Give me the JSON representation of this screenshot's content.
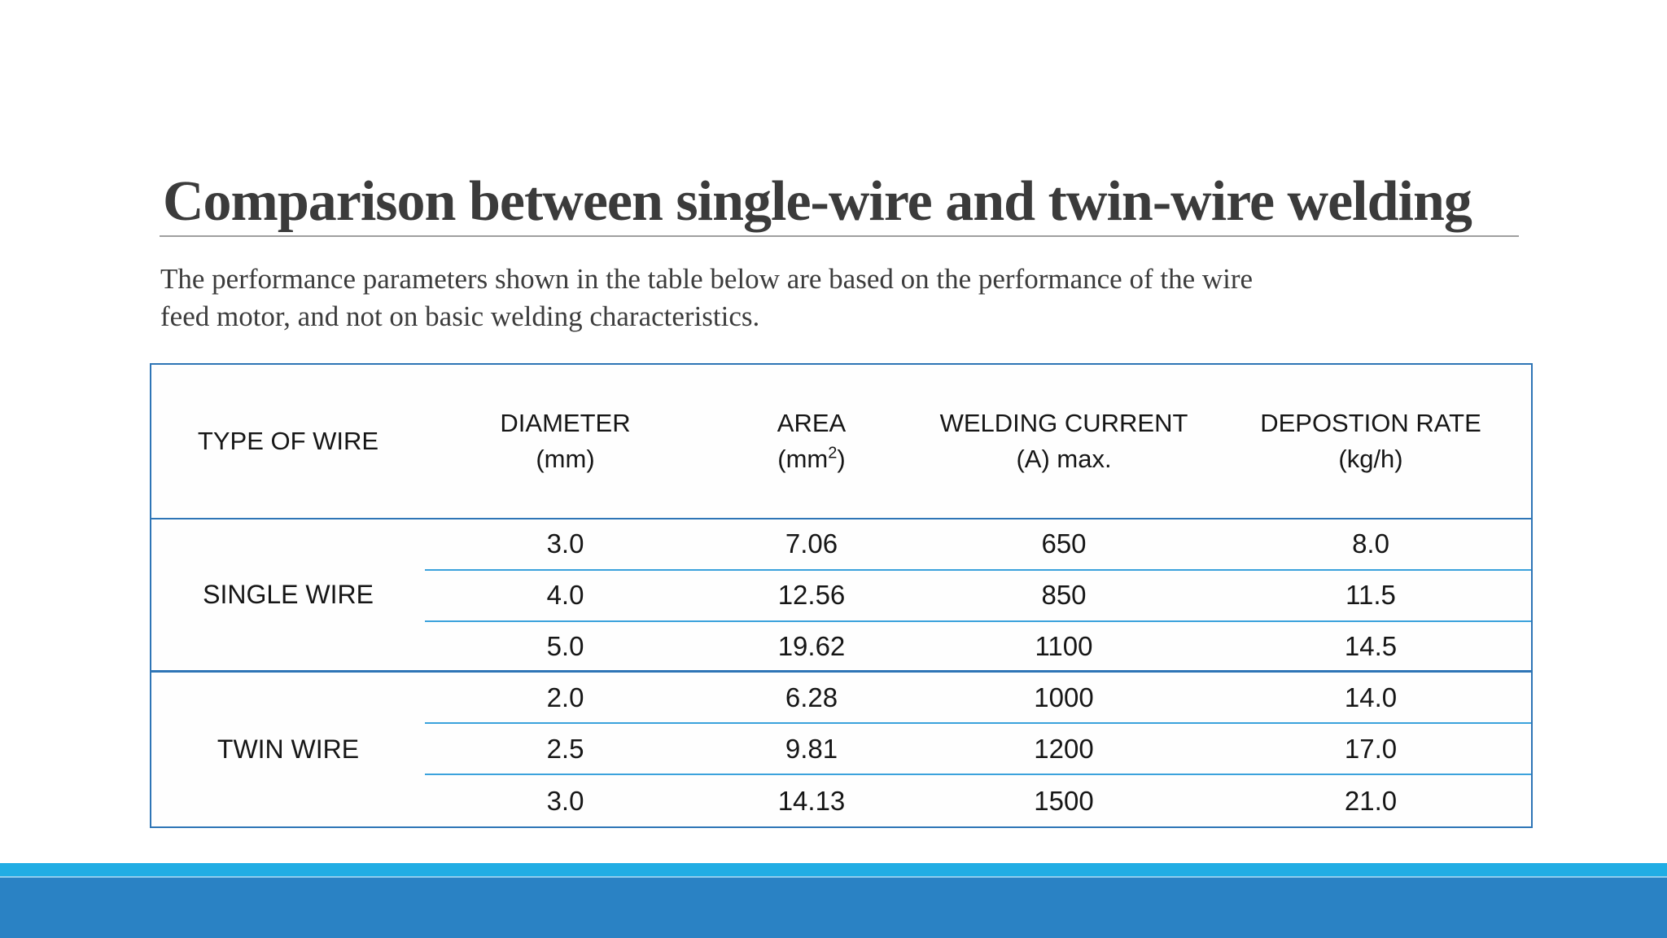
{
  "slide": {
    "title": "Comparison between single-wire and twin-wire welding",
    "subtitle_lines": [
      "The performance parameters shown in the table below are based on the performance of the wire",
      "feed motor, and not on basic welding characteristics."
    ]
  },
  "table": {
    "headers": [
      {
        "line1": "TYPE OF WIRE",
        "line2": ""
      },
      {
        "line1": "DIAMETER",
        "line2": "(mm)"
      },
      {
        "line1": "AREA",
        "line2_pre": "(mm",
        "line2_sup": "2",
        "line2_post": ")"
      },
      {
        "line1": "WELDING CURRENT",
        "line2": "(A) max."
      },
      {
        "line1": "DEPOSTION RATE",
        "line2": "(kg/h)"
      }
    ],
    "groups": [
      {
        "label": "SINGLE WIRE",
        "rows": [
          {
            "cells": [
              "3.0",
              "7.06",
              "650",
              "8.0"
            ]
          },
          {
            "cells": [
              "4.0",
              "12.56",
              "850",
              "11.5"
            ]
          },
          {
            "cells": [
              "5.0",
              "19.62",
              "1100",
              "14.5"
            ]
          }
        ]
      },
      {
        "label": "TWIN WIRE",
        "rows": [
          {
            "cells": [
              "2.0",
              "6.28",
              "1000",
              "14.0"
            ]
          },
          {
            "cells": [
              "2.5",
              "9.81",
              "1200",
              "17.0"
            ]
          },
          {
            "cells": [
              "3.0",
              "14.13",
              "1500",
              "21.0"
            ]
          }
        ]
      }
    ]
  },
  "colors": {
    "table_border_blue": "#2e75b6",
    "row_separator_blue": "#3ba2dc",
    "footer_strip_cyan": "#21ade4",
    "footer_divider_light": "#8fcdee",
    "footer_bar_blue": "#2a82c4",
    "title_gray": "#3b3b3b"
  }
}
